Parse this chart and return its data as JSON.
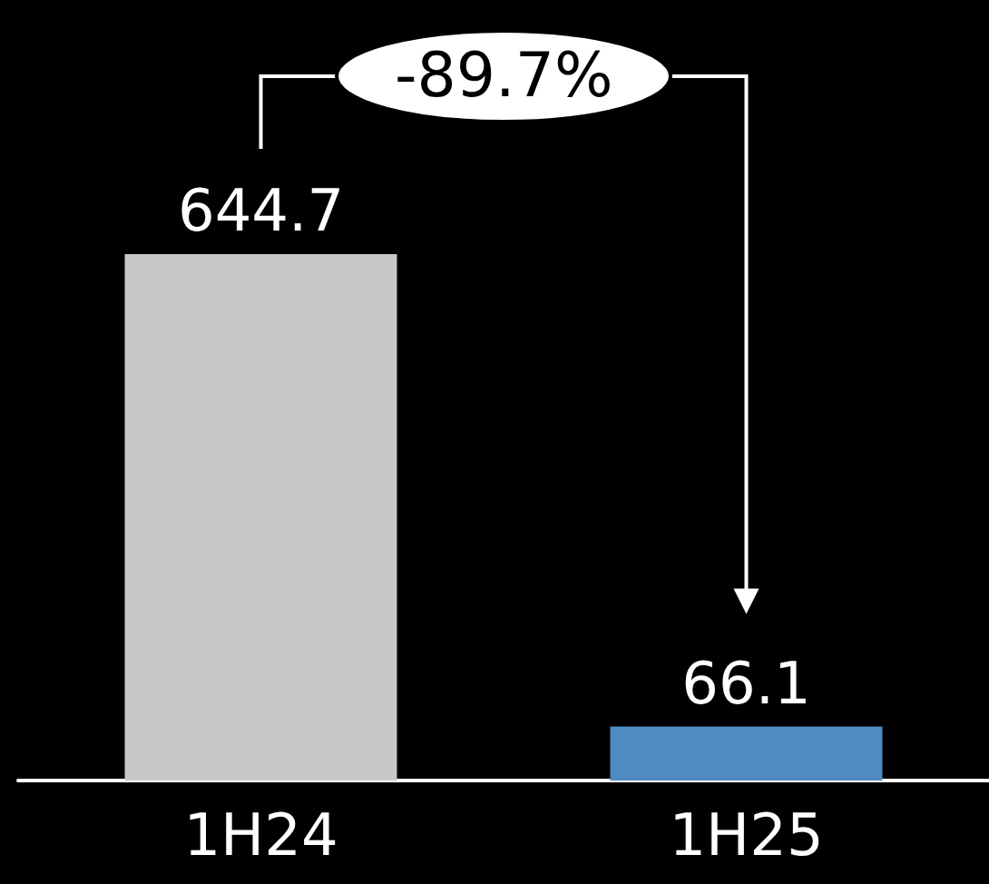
{
  "chart_data": {
    "type": "bar",
    "categories": [
      "1H24",
      "1H25"
    ],
    "values": [
      644.7,
      66.1
    ],
    "colors": [
      "#c8c8c8",
      "#4f8bc0"
    ],
    "data_labels": true,
    "annotations": [
      "-89.7%"
    ]
  }
}
